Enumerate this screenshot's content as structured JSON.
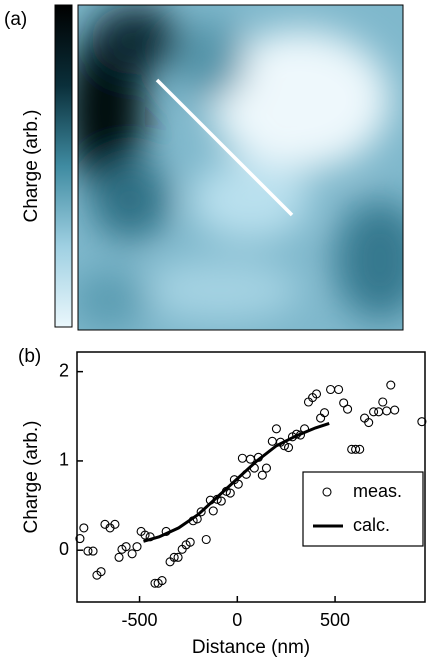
{
  "panel_a": {
    "label": "(a)",
    "colorbar_label": "Charge (arb.)"
  },
  "chart_data": {
    "type": "scatter",
    "panel_label": "(b)",
    "x_label": "Distance (nm)",
    "y_label": "Charge (arb.)",
    "xlim": [
      -820,
      960
    ],
    "ylim": [
      -0.58,
      2.22
    ],
    "xticks": [
      -500,
      0,
      500
    ],
    "yticks": [
      0,
      1,
      2
    ],
    "legend_position": "center-right",
    "series": [
      {
        "name": "meas.",
        "kind": "scatter",
        "color": "#000000",
        "x": [
          -805,
          -785,
          -764,
          -738,
          -718,
          -697,
          -677,
          -651,
          -626,
          -605,
          -590,
          -569,
          -538,
          -513,
          -492,
          -472,
          -446,
          -421,
          -405,
          -385,
          -364,
          -344,
          -323,
          -303,
          -282,
          -262,
          -241,
          -226,
          -205,
          -185,
          -159,
          -138,
          -123,
          -103,
          -82,
          -56,
          -36,
          -15,
          5,
          26,
          46,
          67,
          87,
          108,
          128,
          149,
          179,
          200,
          221,
          241,
          262,
          282,
          303,
          323,
          344,
          364,
          385,
          405,
          426,
          446,
          477,
          518,
          544,
          564,
          585,
          605,
          626,
          651,
          672,
          697,
          723,
          744,
          764,
          785,
          805,
          944
        ],
        "values": [
          0.13,
          0.25,
          -0.01,
          -0.01,
          -0.28,
          -0.24,
          0.29,
          0.25,
          0.29,
          -0.08,
          0.01,
          0.04,
          -0.04,
          0.04,
          0.21,
          0.17,
          0.15,
          -0.37,
          -0.37,
          -0.34,
          0.21,
          -0.13,
          -0.08,
          -0.08,
          0.01,
          0.06,
          0.09,
          0.33,
          0.35,
          0.43,
          0.12,
          0.56,
          0.44,
          0.57,
          0.55,
          0.66,
          0.64,
          0.79,
          0.74,
          1.03,
          0.85,
          1.02,
          0.92,
          1.04,
          0.84,
          0.92,
          1.22,
          1.36,
          1.21,
          1.17,
          1.15,
          1.27,
          1.3,
          1.29,
          1.36,
          1.66,
          1.71,
          1.75,
          1.48,
          1.54,
          1.8,
          1.8,
          1.65,
          1.58,
          1.13,
          1.13,
          1.13,
          1.48,
          1.43,
          1.55,
          1.55,
          1.66,
          1.56,
          1.85,
          1.57,
          1.44
        ]
      },
      {
        "name": "calc.",
        "kind": "line",
        "color": "#000000",
        "x": [
          -480,
          -400,
          -300,
          -200,
          -100,
          0,
          100,
          200,
          300,
          400,
          470
        ],
        "values": [
          0.1,
          0.15,
          0.25,
          0.4,
          0.6,
          0.8,
          1.0,
          1.17,
          1.28,
          1.37,
          1.42
        ]
      }
    ]
  }
}
